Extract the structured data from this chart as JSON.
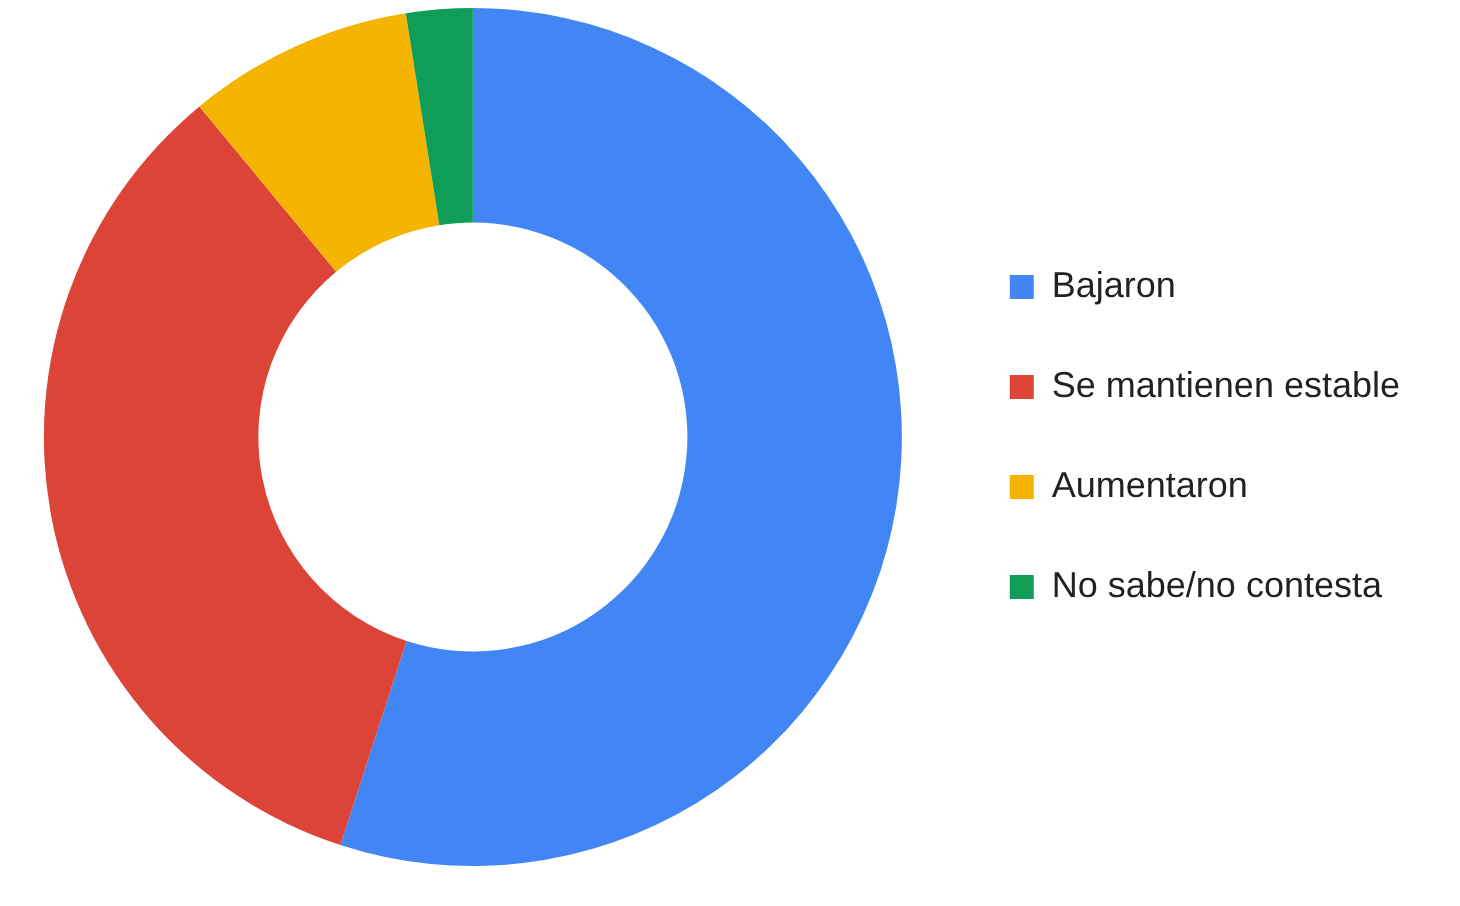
{
  "chart_data": {
    "type": "donut",
    "categories": [
      "Bajaron",
      "Se mantienen estable",
      "Aumentaron",
      "No sabe/no contesta"
    ],
    "values": [
      55,
      34,
      8.5,
      2.5
    ],
    "colors": [
      "#4285f4",
      "#db4437",
      "#f4b400",
      "#0f9d58"
    ],
    "legend": "right"
  }
}
